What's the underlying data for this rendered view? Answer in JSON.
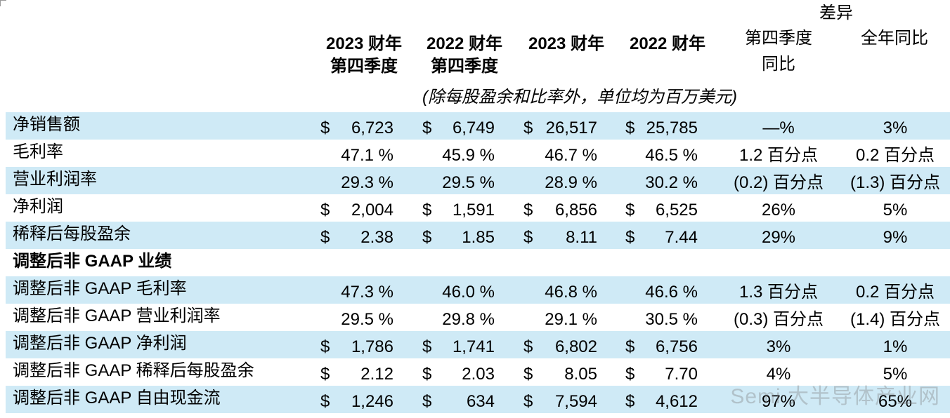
{
  "header": {
    "group": "差异",
    "columns": [
      {
        "line1": "2023 财年",
        "line2": "第四季度"
      },
      {
        "line1": "2022 财年",
        "line2": "第四季度"
      },
      {
        "line1": "2023 财年",
        "line2": ""
      },
      {
        "line1": "2022 财年",
        "line2": ""
      },
      {
        "line1": "第四季度",
        "line2": "同比"
      },
      {
        "line1": "全年同比",
        "line2": ""
      }
    ],
    "units_note": "(除每股盈余和比率外，单位均为百万美元)"
  },
  "rows": [
    {
      "label": "净销售额",
      "shaded": true,
      "section": false,
      "cur": [
        "$",
        "$",
        "$",
        "$"
      ],
      "vals": [
        "6,723",
        "6,749",
        "26,517",
        "25,785"
      ],
      "diff": [
        "—%",
        "3%"
      ]
    },
    {
      "label": "毛利率",
      "shaded": false,
      "section": false,
      "cur": [
        "",
        "",
        "",
        ""
      ],
      "vals": [
        "47.1 %",
        "45.9 %",
        "46.7 %",
        "46.5 %"
      ],
      "diff": [
        "1.2 百分点",
        "0.2 百分点"
      ]
    },
    {
      "label": "营业利润率",
      "shaded": true,
      "section": false,
      "cur": [
        "",
        "",
        "",
        ""
      ],
      "vals": [
        "29.3 %",
        "29.5 %",
        "28.9 %",
        "30.2 %"
      ],
      "diff": [
        "(0.2) 百分点",
        "(1.3) 百分点"
      ]
    },
    {
      "label": "净利润",
      "shaded": false,
      "section": false,
      "cur": [
        "$",
        "$",
        "$",
        "$"
      ],
      "vals": [
        "2,004",
        "1,591",
        "6,856",
        "6,525"
      ],
      "diff": [
        "26%",
        "5%"
      ]
    },
    {
      "label": "稀释后每股盈余",
      "shaded": true,
      "section": false,
      "cur": [
        "$",
        "$",
        "$",
        "$"
      ],
      "vals": [
        "2.38",
        "1.85",
        "8.11",
        "7.44"
      ],
      "diff": [
        "29%",
        "9%"
      ]
    },
    {
      "label": "调整后非 GAAP 业绩",
      "shaded": false,
      "section": true,
      "cur": [
        "",
        "",
        "",
        ""
      ],
      "vals": [
        "",
        "",
        "",
        ""
      ],
      "diff": [
        "",
        ""
      ]
    },
    {
      "label": "调整后非 GAAP 毛利率",
      "shaded": true,
      "section": false,
      "cur": [
        "",
        "",
        "",
        ""
      ],
      "vals": [
        "47.3 %",
        "46.0 %",
        "46.8 %",
        "46.6 %"
      ],
      "diff": [
        "1.3 百分点",
        "0.2 百分点"
      ]
    },
    {
      "label": "调整后非 GAAP 营业利润率",
      "shaded": false,
      "section": false,
      "cur": [
        "",
        "",
        "",
        ""
      ],
      "vals": [
        "29.5 %",
        "29.8 %",
        "29.1 %",
        "30.5 %"
      ],
      "diff": [
        "(0.3) 百分点",
        "(1.4) 百分点"
      ]
    },
    {
      "label": "调整后非 GAAP 净利润",
      "shaded": true,
      "section": false,
      "cur": [
        "$",
        "$",
        "$",
        "$"
      ],
      "vals": [
        "1,786",
        "1,741",
        "6,802",
        "6,756"
      ],
      "diff": [
        "3%",
        "1%"
      ]
    },
    {
      "label": "调整后非 GAAP 稀释后每股盈余",
      "shaded": false,
      "section": false,
      "cur": [
        "$",
        "$",
        "$",
        "$"
      ],
      "vals": [
        "2.12",
        "2.03",
        "8.05",
        "7.70"
      ],
      "diff": [
        "4%",
        "5%"
      ]
    },
    {
      "label": "调整后非 GAAP 自由现金流",
      "shaded": true,
      "section": false,
      "cur": [
        "$",
        "$",
        "$",
        "$"
      ],
      "vals": [
        "1,246",
        "634",
        "7,594",
        "4,612"
      ],
      "diff": [
        "97%",
        "65%"
      ]
    }
  ],
  "watermark": "Semi 大半导体产业网",
  "colors": {
    "row_shade": "#cfeaf6"
  }
}
